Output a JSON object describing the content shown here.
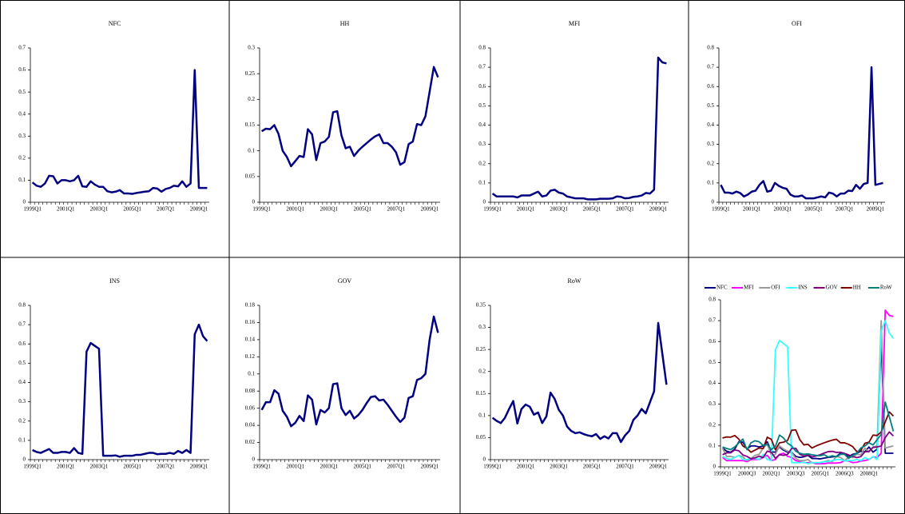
{
  "chart_data": [
    {
      "type": "line",
      "title": "NFC",
      "color": "#000080",
      "ylim": [
        0,
        0.7
      ],
      "yticks": [
        0,
        0.1,
        0.2,
        0.3,
        0.4,
        0.5,
        0.6,
        0.7
      ],
      "categories": [
        "1999Q1",
        null,
        null,
        null,
        null,
        null,
        null,
        null,
        "2001Q1",
        null,
        null,
        null,
        null,
        null,
        null,
        null,
        "2003Q1",
        null,
        null,
        null,
        null,
        null,
        null,
        null,
        "2005Q1",
        null,
        null,
        null,
        null,
        null,
        null,
        null,
        "2007Q1",
        null,
        null,
        null,
        null,
        null,
        null,
        null,
        "2009Q1",
        null,
        null
      ],
      "values": [
        0.09,
        0.075,
        0.07,
        0.085,
        0.12,
        0.118,
        0.085,
        0.1,
        0.1,
        0.095,
        0.1,
        0.12,
        0.072,
        0.07,
        0.095,
        0.08,
        0.07,
        0.07,
        0.05,
        0.045,
        0.048,
        0.055,
        0.04,
        0.04,
        0.038,
        0.042,
        0.045,
        0.048,
        0.05,
        0.065,
        0.062,
        0.048,
        0.06,
        0.065,
        0.075,
        0.072,
        0.095,
        0.07,
        0.085,
        0.6,
        0.065,
        0.065,
        0.065
      ]
    },
    {
      "type": "line",
      "title": "HH",
      "color": "#000080",
      "ylim": [
        0,
        0.3
      ],
      "yticks": [
        0,
        0.05,
        0.1,
        0.15,
        0.2,
        0.25,
        0.3
      ],
      "categories": [
        "1999Q1",
        null,
        null,
        null,
        null,
        null,
        null,
        null,
        "2001Q1",
        null,
        null,
        null,
        null,
        null,
        null,
        null,
        "2003Q1",
        null,
        null,
        null,
        null,
        null,
        null,
        null,
        "2005Q1",
        null,
        null,
        null,
        null,
        null,
        null,
        null,
        "2007Q1",
        null,
        null,
        null,
        null,
        null,
        null,
        null,
        "2009Q1",
        null,
        null
      ],
      "values": [
        0.138,
        0.143,
        0.142,
        0.15,
        0.133,
        0.1,
        0.088,
        0.07,
        0.08,
        0.09,
        0.088,
        0.142,
        0.132,
        0.082,
        0.115,
        0.118,
        0.127,
        0.175,
        0.177,
        0.13,
        0.105,
        0.108,
        0.09,
        0.1,
        0.108,
        0.115,
        0.122,
        0.128,
        0.132,
        0.115,
        0.115,
        0.108,
        0.097,
        0.073,
        0.078,
        0.113,
        0.118,
        0.152,
        0.15,
        0.167,
        0.215,
        0.263,
        0.243
      ]
    },
    {
      "type": "line",
      "title": "MFI",
      "color": "#000080",
      "ylim": [
        0,
        0.8
      ],
      "yticks": [
        0,
        0.1,
        0.2,
        0.3,
        0.4,
        0.5,
        0.6,
        0.7,
        0.8
      ],
      "categories": [
        "1999Q1",
        null,
        null,
        null,
        null,
        null,
        null,
        null,
        "2001Q1",
        null,
        null,
        null,
        null,
        null,
        null,
        null,
        "2003Q1",
        null,
        null,
        null,
        null,
        null,
        null,
        null,
        "2005Q1",
        null,
        null,
        null,
        null,
        null,
        null,
        null,
        "2007Q1",
        null,
        null,
        null,
        null,
        null,
        null,
        null,
        "2009Q1",
        null,
        null
      ],
      "values": [
        0.045,
        0.03,
        0.03,
        0.03,
        0.03,
        0.03,
        0.025,
        0.035,
        0.035,
        0.035,
        0.045,
        0.055,
        0.03,
        0.035,
        0.06,
        0.065,
        0.05,
        0.045,
        0.03,
        0.025,
        0.02,
        0.02,
        0.02,
        0.015,
        0.015,
        0.015,
        0.018,
        0.018,
        0.018,
        0.02,
        0.03,
        0.028,
        0.02,
        0.022,
        0.028,
        0.03,
        0.035,
        0.048,
        0.045,
        0.065,
        0.75,
        0.725,
        0.72
      ]
    },
    {
      "type": "line",
      "title": "OFI",
      "color": "#000080",
      "ylim": [
        0,
        0.8
      ],
      "yticks": [
        0,
        0.1,
        0.2,
        0.3,
        0.4,
        0.5,
        0.6,
        0.7,
        0.8
      ],
      "categories": [
        "1999Q1",
        null,
        null,
        null,
        null,
        null,
        null,
        null,
        "2001Q1",
        null,
        null,
        null,
        null,
        null,
        null,
        null,
        "2003Q1",
        null,
        null,
        null,
        null,
        null,
        null,
        null,
        "2005Q1",
        null,
        null,
        null,
        null,
        null,
        null,
        null,
        "2007Q1",
        null,
        null,
        null,
        null,
        null,
        null,
        null,
        "2009Q1",
        null,
        null
      ],
      "values": [
        0.09,
        0.05,
        0.05,
        0.045,
        0.055,
        0.048,
        0.03,
        0.04,
        0.055,
        0.06,
        0.09,
        0.11,
        0.055,
        0.06,
        0.1,
        0.085,
        0.075,
        0.07,
        0.04,
        0.03,
        0.03,
        0.035,
        0.02,
        0.02,
        0.02,
        0.025,
        0.03,
        0.025,
        0.05,
        0.045,
        0.03,
        0.045,
        0.045,
        0.06,
        0.058,
        0.09,
        0.07,
        0.095,
        0.1,
        0.7,
        0.09,
        0.095,
        0.1
      ]
    },
    {
      "type": "line",
      "title": "INS",
      "color": "#000080",
      "ylim": [
        0,
        0.8
      ],
      "yticks": [
        0,
        0.1,
        0.2,
        0.3,
        0.4,
        0.5,
        0.6,
        0.7,
        0.8
      ],
      "categories": [
        "1999Q1",
        null,
        null,
        null,
        null,
        null,
        null,
        null,
        "2001Q1",
        null,
        null,
        null,
        null,
        null,
        null,
        null,
        "2003Q1",
        null,
        null,
        null,
        null,
        null,
        null,
        null,
        "2005Q1",
        null,
        null,
        null,
        null,
        null,
        null,
        null,
        "2007Q1",
        null,
        null,
        null,
        null,
        null,
        null,
        null,
        "2009Q1",
        null,
        null
      ],
      "values": [
        0.05,
        0.04,
        0.035,
        0.045,
        0.055,
        0.035,
        0.035,
        0.04,
        0.04,
        0.035,
        0.06,
        0.035,
        0.03,
        0.56,
        0.605,
        0.59,
        0.575,
        0.02,
        0.02,
        0.02,
        0.022,
        0.015,
        0.02,
        0.02,
        0.02,
        0.025,
        0.025,
        0.03,
        0.035,
        0.035,
        0.028,
        0.03,
        0.03,
        0.035,
        0.03,
        0.045,
        0.035,
        0.05,
        0.035,
        0.65,
        0.7,
        0.64,
        0.615
      ]
    },
    {
      "type": "line",
      "title": "GOV",
      "color": "#000080",
      "ylim": [
        0,
        0.18
      ],
      "yticks": [
        0,
        0.02,
        0.04,
        0.06,
        0.08,
        0.1,
        0.12,
        0.14,
        0.16,
        0.18
      ],
      "categories": [
        "1999Q1",
        null,
        null,
        null,
        null,
        null,
        null,
        null,
        "2001Q1",
        null,
        null,
        null,
        null,
        null,
        null,
        null,
        "2003Q1",
        null,
        null,
        null,
        null,
        null,
        null,
        null,
        "2005Q1",
        null,
        null,
        null,
        null,
        null,
        null,
        null,
        "2007Q1",
        null,
        null,
        null,
        null,
        null,
        null,
        null,
        "2009Q1",
        null,
        null
      ],
      "values": [
        0.058,
        0.067,
        0.067,
        0.081,
        0.077,
        0.057,
        0.05,
        0.039,
        0.043,
        0.051,
        0.045,
        0.075,
        0.07,
        0.041,
        0.058,
        0.055,
        0.06,
        0.088,
        0.089,
        0.06,
        0.052,
        0.057,
        0.048,
        0.052,
        0.058,
        0.066,
        0.073,
        0.074,
        0.069,
        0.07,
        0.064,
        0.057,
        0.05,
        0.044,
        0.049,
        0.072,
        0.074,
        0.093,
        0.095,
        0.1,
        0.14,
        0.167,
        0.148
      ]
    },
    {
      "type": "line",
      "title": "RoW",
      "color": "#000080",
      "ylim": [
        0,
        0.35
      ],
      "yticks": [
        0,
        0.05,
        0.1,
        0.15,
        0.2,
        0.25,
        0.3,
        0.35
      ],
      "categories": [
        "1999Q1",
        null,
        null,
        null,
        null,
        null,
        null,
        null,
        "2001Q1",
        null,
        null,
        null,
        null,
        null,
        null,
        null,
        "2003Q1",
        null,
        null,
        null,
        null,
        null,
        null,
        null,
        "2005Q1",
        null,
        null,
        null,
        null,
        null,
        null,
        null,
        "2007Q1",
        null,
        null,
        null,
        null,
        null,
        null,
        null,
        "2009Q1",
        null,
        null
      ],
      "values": [
        0.095,
        0.088,
        0.083,
        0.095,
        0.115,
        0.133,
        0.082,
        0.115,
        0.125,
        0.12,
        0.102,
        0.107,
        0.083,
        0.098,
        0.152,
        0.138,
        0.113,
        0.1,
        0.075,
        0.065,
        0.06,
        0.062,
        0.058,
        0.055,
        0.053,
        0.058,
        0.047,
        0.053,
        0.048,
        0.06,
        0.06,
        0.04,
        0.055,
        0.065,
        0.09,
        0.1,
        0.115,
        0.105,
        0.13,
        0.155,
        0.31,
        0.24,
        0.17
      ]
    },
    {
      "type": "multiline",
      "ylim": [
        0,
        0.8
      ],
      "yticks": [
        0,
        0.1,
        0.2,
        0.3,
        0.4,
        0.5,
        0.6,
        0.7,
        0.8
      ],
      "categories": [
        "1999Q1",
        null,
        null,
        null,
        null,
        null,
        "2000Q3",
        null,
        null,
        null,
        null,
        null,
        "2002Q1",
        null,
        null,
        null,
        null,
        null,
        "2003Q3",
        null,
        null,
        null,
        null,
        null,
        "2005Q1",
        null,
        null,
        null,
        null,
        null,
        "2006Q3",
        null,
        null,
        null,
        null,
        null,
        "2008Q1",
        null,
        null,
        null,
        null,
        null,
        null
      ],
      "series": [
        {
          "name": "NFC",
          "color": "#000080",
          "values": [
            0.09,
            0.075,
            0.07,
            0.085,
            0.12,
            0.118,
            0.085,
            0.1,
            0.1,
            0.095,
            0.1,
            0.12,
            0.072,
            0.07,
            0.095,
            0.08,
            0.07,
            0.07,
            0.05,
            0.045,
            0.048,
            0.055,
            0.04,
            0.04,
            0.038,
            0.042,
            0.045,
            0.048,
            0.05,
            0.065,
            0.062,
            0.048,
            0.06,
            0.065,
            0.075,
            0.072,
            0.095,
            0.07,
            0.085,
            0.6,
            0.065,
            0.065,
            0.065
          ]
        },
        {
          "name": "MFI",
          "color": "#ff00ff",
          "values": [
            0.045,
            0.03,
            0.03,
            0.03,
            0.03,
            0.03,
            0.025,
            0.035,
            0.035,
            0.035,
            0.045,
            0.055,
            0.03,
            0.035,
            0.06,
            0.065,
            0.05,
            0.045,
            0.03,
            0.025,
            0.02,
            0.02,
            0.02,
            0.015,
            0.015,
            0.015,
            0.018,
            0.018,
            0.018,
            0.02,
            0.03,
            0.028,
            0.02,
            0.022,
            0.028,
            0.03,
            0.035,
            0.048,
            0.045,
            0.065,
            0.75,
            0.725,
            0.72
          ]
        },
        {
          "name": "OFI",
          "color": "#999999",
          "values": [
            0.09,
            0.05,
            0.05,
            0.045,
            0.055,
            0.048,
            0.03,
            0.04,
            0.055,
            0.06,
            0.09,
            0.11,
            0.055,
            0.06,
            0.1,
            0.085,
            0.075,
            0.07,
            0.04,
            0.03,
            0.03,
            0.035,
            0.02,
            0.02,
            0.02,
            0.025,
            0.03,
            0.025,
            0.05,
            0.045,
            0.03,
            0.045,
            0.045,
            0.06,
            0.058,
            0.09,
            0.07,
            0.095,
            0.1,
            0.7,
            0.09,
            0.095,
            0.1
          ]
        },
        {
          "name": "INS",
          "color": "#33ffff",
          "values": [
            0.05,
            0.04,
            0.035,
            0.045,
            0.055,
            0.035,
            0.035,
            0.04,
            0.04,
            0.035,
            0.06,
            0.035,
            0.03,
            0.56,
            0.605,
            0.59,
            0.575,
            0.02,
            0.02,
            0.02,
            0.022,
            0.015,
            0.02,
            0.02,
            0.02,
            0.025,
            0.025,
            0.03,
            0.035,
            0.035,
            0.028,
            0.03,
            0.03,
            0.035,
            0.03,
            0.045,
            0.035,
            0.05,
            0.035,
            0.65,
            0.7,
            0.64,
            0.615
          ]
        },
        {
          "name": "GOV",
          "color": "#800080",
          "values": [
            0.058,
            0.067,
            0.067,
            0.081,
            0.077,
            0.057,
            0.05,
            0.039,
            0.043,
            0.051,
            0.045,
            0.075,
            0.07,
            0.041,
            0.058,
            0.055,
            0.06,
            0.088,
            0.089,
            0.06,
            0.052,
            0.057,
            0.048,
            0.052,
            0.058,
            0.066,
            0.073,
            0.074,
            0.069,
            0.07,
            0.064,
            0.057,
            0.05,
            0.044,
            0.049,
            0.072,
            0.074,
            0.093,
            0.095,
            0.1,
            0.14,
            0.167,
            0.148
          ]
        },
        {
          "name": "HH",
          "color": "#800000",
          "values": [
            0.138,
            0.143,
            0.142,
            0.15,
            0.133,
            0.1,
            0.088,
            0.07,
            0.08,
            0.09,
            0.088,
            0.142,
            0.132,
            0.082,
            0.115,
            0.118,
            0.127,
            0.175,
            0.177,
            0.13,
            0.105,
            0.108,
            0.09,
            0.1,
            0.108,
            0.115,
            0.122,
            0.128,
            0.132,
            0.115,
            0.115,
            0.108,
            0.097,
            0.073,
            0.078,
            0.113,
            0.118,
            0.152,
            0.15,
            0.167,
            0.215,
            0.263,
            0.243
          ]
        },
        {
          "name": "RoW",
          "color": "#008080",
          "values": [
            0.095,
            0.088,
            0.083,
            0.095,
            0.115,
            0.133,
            0.082,
            0.115,
            0.125,
            0.12,
            0.102,
            0.107,
            0.083,
            0.098,
            0.152,
            0.138,
            0.113,
            0.1,
            0.075,
            0.065,
            0.06,
            0.062,
            0.058,
            0.055,
            0.053,
            0.058,
            0.047,
            0.053,
            0.048,
            0.06,
            0.06,
            0.04,
            0.055,
            0.065,
            0.09,
            0.1,
            0.115,
            0.105,
            0.13,
            0.155,
            0.31,
            0.24,
            0.17
          ]
        }
      ]
    }
  ]
}
